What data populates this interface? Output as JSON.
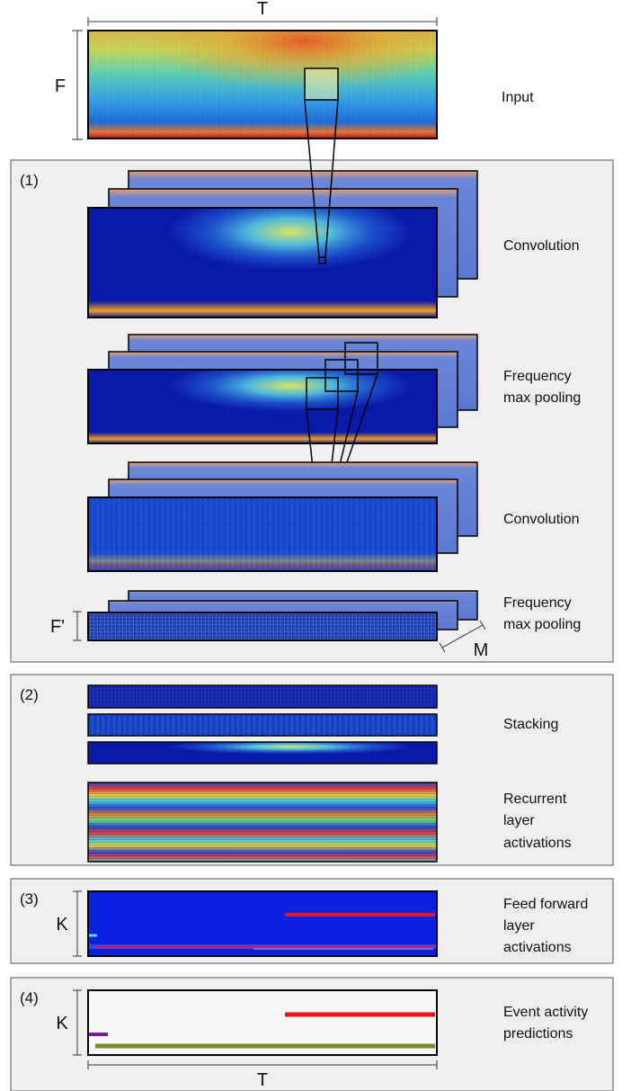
{
  "axes": {
    "time_label": "T",
    "freq_label": "F",
    "reduced_freq_label": "F'",
    "maps_label": "M",
    "classes_label": "K"
  },
  "sections": {
    "s1": "(1)",
    "s2": "(2)",
    "s3": "(3)",
    "s4": "(4)"
  },
  "labels": {
    "input": "Input",
    "conv1": "Convolution",
    "pool1_line1": "Frequency",
    "pool1_line2": "max pooling",
    "conv2": "Convolution",
    "pool2_line1": "Frequency",
    "pool2_line2": "max pooling",
    "stacking": "Stacking",
    "recurrent_line1": "Recurrent",
    "recurrent_line2": "layer",
    "recurrent_line3": "activations",
    "ff_line1": "Feed forward",
    "ff_line2": "layer",
    "ff_line3": "activations",
    "pred_line1": "Event activity",
    "pred_line2": "predictions"
  },
  "colors": {
    "panel_bg": "#efefef",
    "jet_low": "#00008b",
    "jet_high": "#8b0000",
    "event_red": "#e8141a",
    "event_purple": "#7a1f8f",
    "event_olive": "#7b8a2a"
  }
}
